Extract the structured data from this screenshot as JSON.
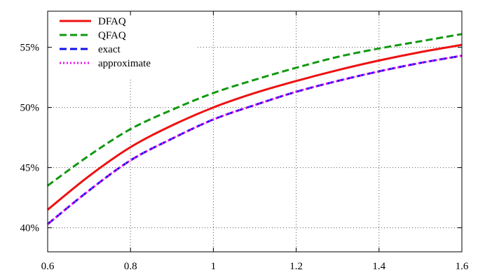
{
  "chart_data": {
    "type": "line",
    "title": "",
    "xlabel": "",
    "ylabel": "",
    "xlim": [
      0.6,
      1.6
    ],
    "ylim": [
      38,
      58
    ],
    "x_ticks": [
      0.6,
      0.8,
      1.0,
      1.2,
      1.4,
      1.6
    ],
    "x_tick_labels": [
      "0.6",
      "0.8",
      "1",
      "1.2",
      "1.4",
      "1.6"
    ],
    "y_ticks": [
      40,
      45,
      50,
      55
    ],
    "y_tick_labels": [
      "40%",
      "45%",
      "50%",
      "55%"
    ],
    "grid": true,
    "legend_position": "top-left",
    "series": [
      {
        "name": "DFAQ",
        "color": "#ee1111",
        "dash": "solid",
        "x": [
          0.6,
          0.7,
          0.8,
          0.9,
          1.0,
          1.1,
          1.2,
          1.3,
          1.4,
          1.5,
          1.6
        ],
        "values": [
          41.5,
          44.3,
          46.7,
          48.5,
          50.0,
          51.2,
          52.2,
          53.1,
          53.9,
          54.6,
          55.2
        ]
      },
      {
        "name": "QFAQ",
        "color": "#119911",
        "dash": "dashed",
        "x": [
          0.6,
          0.7,
          0.8,
          0.9,
          1.0,
          1.1,
          1.2,
          1.3,
          1.4,
          1.5,
          1.6
        ],
        "values": [
          43.5,
          46.0,
          48.2,
          49.8,
          51.2,
          52.3,
          53.3,
          54.2,
          54.9,
          55.5,
          56.1
        ]
      },
      {
        "name": "exact",
        "color": "#1111ee",
        "dash": "dashed",
        "x": [
          0.6,
          0.7,
          0.8,
          0.9,
          1.0,
          1.1,
          1.2,
          1.3,
          1.4,
          1.5,
          1.6
        ],
        "values": [
          40.3,
          43.1,
          45.6,
          47.4,
          49.0,
          50.2,
          51.3,
          52.2,
          53.0,
          53.7,
          54.3
        ]
      },
      {
        "name": "approximate",
        "color": "#ee11ee",
        "dash": "dotted",
        "x": [
          0.6,
          0.7,
          0.8,
          0.9,
          1.0,
          1.1,
          1.2,
          1.3,
          1.4,
          1.5,
          1.6
        ],
        "values": [
          40.3,
          43.1,
          45.6,
          47.4,
          49.0,
          50.2,
          51.3,
          52.2,
          53.0,
          53.7,
          54.3
        ]
      }
    ]
  }
}
